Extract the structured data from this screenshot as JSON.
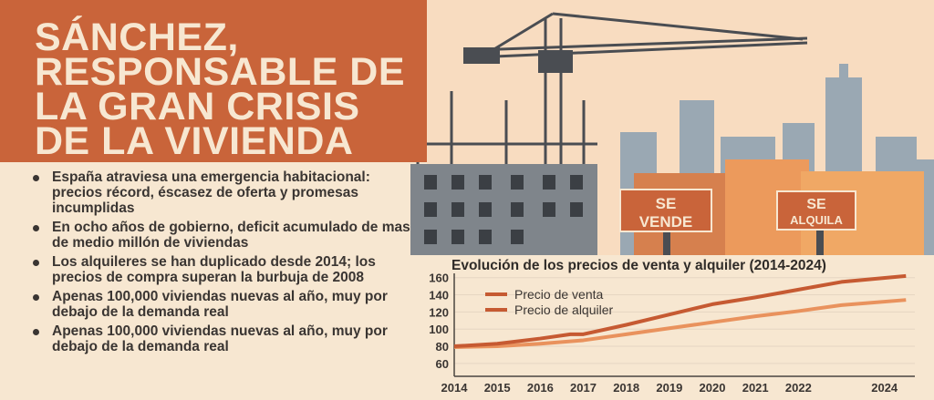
{
  "headline": [
    "SÁNCHEZ,",
    "RESPONSABLE DE",
    "LA GRAN CRISIS",
    "DE LA VIVIENDA"
  ],
  "bullets": [
    "España atraviesa una emergencia habitacional: precios récord, éscasez de oferta y promesas incumplidas",
    "En ocho años de gobierno, deficit acumulado de mas de medio millón de viviendas",
    "Los alquileres se han duplicado desde 2014; los precios de compra superan la burbuja de 2008",
    "Apenas 100,000 viviendas nuevas al año, muy por debajo de la demanda real",
    "Apenas 100,000 viviendas nuevas al año, muy por debajo de la demanda real"
  ],
  "signs": {
    "sale": [
      "SE",
      "VENDE"
    ],
    "rent": [
      "SE",
      "ALQUILA"
    ]
  },
  "colors": {
    "accent": "#c9643a",
    "background": "#f7e7d1",
    "sale_line": "#c65a32",
    "rent_line": "#e9925d"
  },
  "chart_data": {
    "type": "line",
    "title": "Evolución de los precios de venta y alquiler (2014-2024)",
    "xlabel": "",
    "ylabel": "",
    "ylim": [
      45,
      165
    ],
    "xlim": [
      2014,
      2024.6
    ],
    "yticks": [
      160,
      140,
      120,
      100,
      80,
      60
    ],
    "xticks": [
      2014,
      2015,
      2016,
      2017,
      2018,
      2019,
      2020,
      2021,
      2022,
      2024
    ],
    "legend": "top-left",
    "series": [
      {
        "name": "Precio de venta",
        "x": [
          2014,
          2015,
          2016,
          2016.7,
          2017,
          2018,
          2019,
          2020,
          2021,
          2022,
          2023,
          2024.5
        ],
        "y": [
          80,
          83,
          89,
          94,
          94,
          105,
          117,
          129,
          137,
          146,
          155,
          162
        ]
      },
      {
        "name": "Precio de alquiler",
        "x": [
          2014,
          2015,
          2016,
          2017,
          2018,
          2019,
          2020,
          2021,
          2022,
          2023,
          2024.5
        ],
        "y": [
          79,
          80,
          83,
          87,
          94,
          101,
          108,
          115,
          121,
          128,
          134
        ]
      }
    ]
  }
}
